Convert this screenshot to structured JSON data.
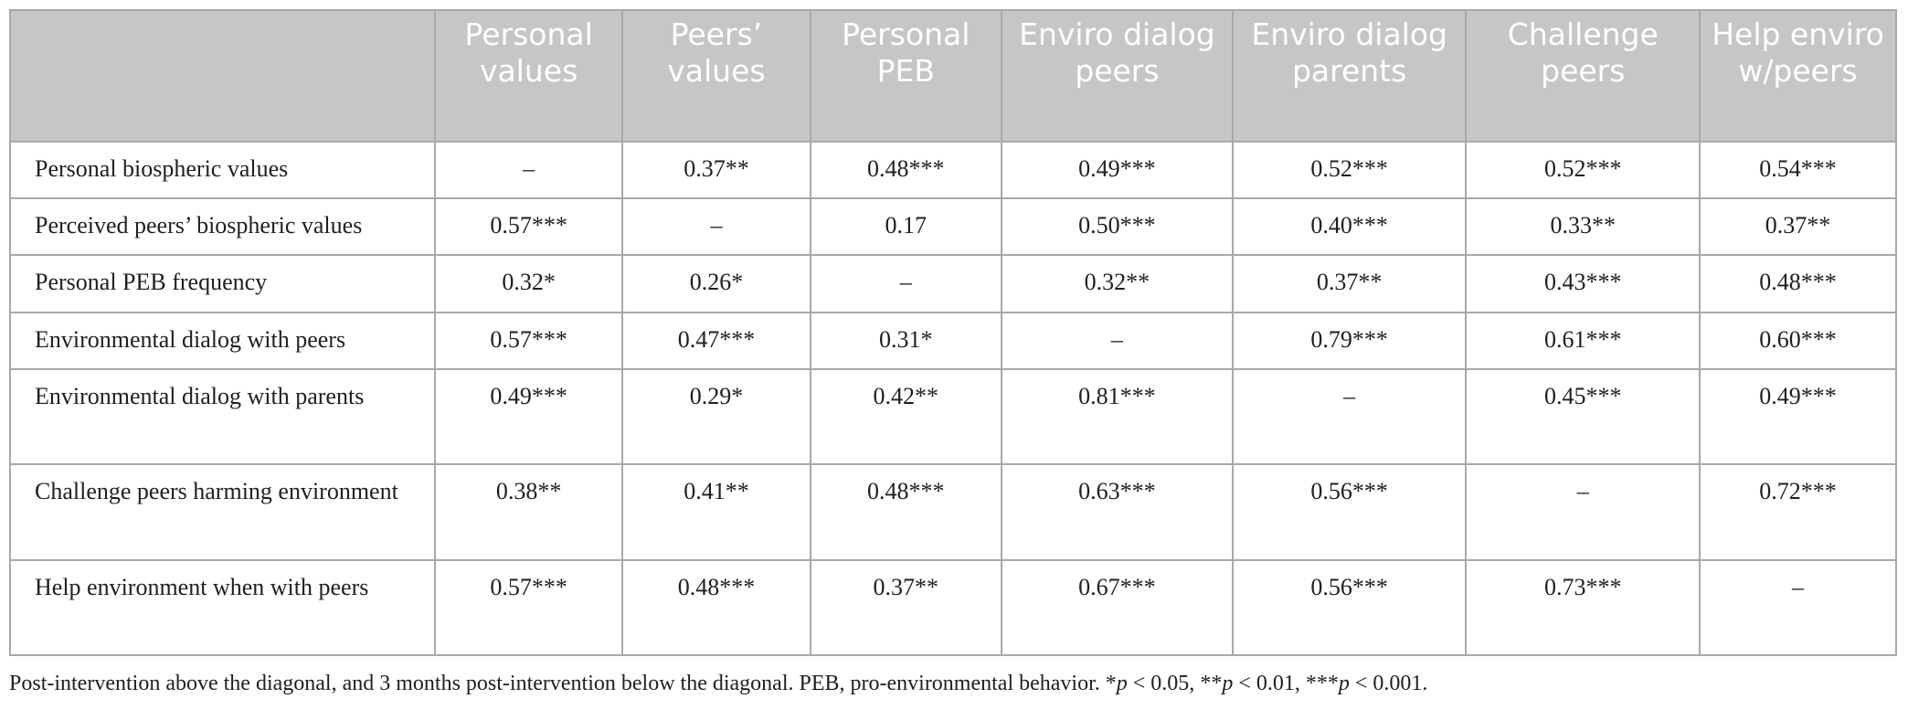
{
  "table": {
    "headers": [
      "",
      "Personal values",
      "Peers’ values",
      "Personal PEB",
      "Enviro dialog peers",
      "Enviro dialog parents",
      "Challenge peers",
      "Help enviro w/peers"
    ],
    "rows": [
      {
        "label": "Personal biospheric values",
        "cells": [
          "–",
          "0.37**",
          "0.48***",
          "0.49***",
          "0.52***",
          "0.52***",
          "0.54***"
        ]
      },
      {
        "label": "Perceived peers’ biospheric values",
        "cells": [
          "0.57***",
          "–",
          "0.17",
          "0.50***",
          "0.40***",
          "0.33**",
          "0.37**"
        ]
      },
      {
        "label": "Personal PEB frequency",
        "cells": [
          "0.32*",
          "0.26*",
          "–",
          "0.32**",
          "0.37**",
          "0.43***",
          "0.48***"
        ]
      },
      {
        "label": "Environmental dialog with peers",
        "cells": [
          "0.57***",
          "0.47***",
          "0.31*",
          "–",
          "0.79***",
          "0.61***",
          "0.60***"
        ]
      },
      {
        "label": "Environmental dialog with parents",
        "cells": [
          "0.49***",
          "0.29*",
          "0.42**",
          "0.81***",
          "–",
          "0.45***",
          "0.49***"
        ]
      },
      {
        "label": "Challenge peers harming environment",
        "cells": [
          "0.38**",
          "0.41**",
          "0.48***",
          "0.63***",
          "0.56***",
          "–",
          "0.72***"
        ]
      },
      {
        "label": "Help environment when with peers",
        "cells": [
          "0.57***",
          "0.48***",
          "0.37**",
          "0.67***",
          "0.56***",
          "0.73***",
          "–"
        ]
      }
    ]
  },
  "footnote": {
    "text": "Post-intervention above the diagonal, and 3 months post-intervention below the diagonal. PEB, pro-environmental behavior. ",
    "sig1_mark": "*",
    "sig1_var": "p",
    "sig1_rest": " < 0.05, ",
    "sig2_mark": "**",
    "sig2_var": "p",
    "sig2_rest": " < 0.01, ",
    "sig3_mark": "***",
    "sig3_var": "p",
    "sig3_rest": " < 0.001."
  }
}
